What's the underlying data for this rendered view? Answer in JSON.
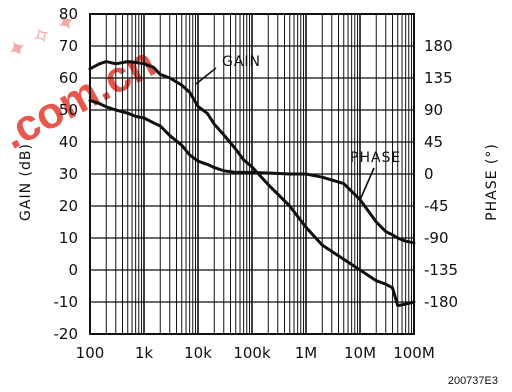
{
  "chart_data": {
    "type": "line",
    "x_scale": "log",
    "xlim": [
      100,
      100000000
    ],
    "x_tick_labels": [
      "100",
      "1k",
      "10k",
      "100k",
      "1M",
      "10M",
      "100M"
    ],
    "x_tick_values": [
      100,
      1000,
      10000,
      100000,
      1000000,
      10000000,
      100000000
    ],
    "ylabel_left": "GAIN (dB)",
    "ylim_left": [
      -20,
      80
    ],
    "y_tick_labels_left": [
      "80",
      "70",
      "60",
      "50",
      "40",
      "30",
      "20",
      "10",
      "0",
      "-10",
      "-20"
    ],
    "ylabel_right": "PHASE (°)",
    "ylim_right": [
      -225,
      225
    ],
    "y_tick_labels_right": [
      "180",
      "135",
      "90",
      "45",
      "0",
      "-45",
      "-90",
      "-135",
      "-180"
    ],
    "grid": true,
    "series": [
      {
        "name": "GAIN",
        "axis": "left",
        "x": [
          100,
          150,
          200,
          300,
          500,
          700,
          1000,
          1500,
          2000,
          3000,
          5000,
          7000,
          10000,
          15000,
          20000,
          30000,
          50000,
          100000,
          200000,
          500000,
          1000000,
          2000000,
          5000000,
          10000000,
          20000000,
          30000000,
          40000000,
          50000000,
          70000000,
          100000000
        ],
        "values": [
          53,
          52,
          51,
          50,
          49,
          48,
          47.5,
          46,
          45,
          42,
          39,
          36,
          34,
          33,
          32,
          31,
          30.5,
          30.5,
          30.3,
          30,
          30,
          29,
          27,
          22,
          15,
          12,
          11,
          10,
          9,
          8.5
        ]
      },
      {
        "name": "PHASE",
        "axis": "right",
        "x": [
          100,
          150,
          200,
          300,
          500,
          700,
          1000,
          1500,
          2000,
          3000,
          5000,
          7000,
          10000,
          15000,
          20000,
          30000,
          50000,
          70000,
          100000,
          200000,
          500000,
          1000000,
          2000000,
          5000000,
          10000000,
          20000000,
          30000000,
          40000000,
          50000000,
          70000000,
          100000000
        ],
        "values": [
          148,
          155,
          158,
          155,
          158,
          157,
          155,
          150,
          140,
          135,
          125,
          115,
          95,
          85,
          70,
          55,
          35,
          20,
          10,
          -15,
          -45,
          -75,
          -100,
          -120,
          -135,
          -150,
          -155,
          -160,
          -185,
          -183,
          -180
        ]
      }
    ],
    "annotations": [
      "GAIN",
      "PHASE"
    ],
    "figure_id": "200737E3",
    "watermark": ".com.cn"
  },
  "style": {
    "line_color": "#111111",
    "grid_color": "#111111",
    "gain_early_color": "#777777",
    "watermark_color": "#e23b2e"
  }
}
